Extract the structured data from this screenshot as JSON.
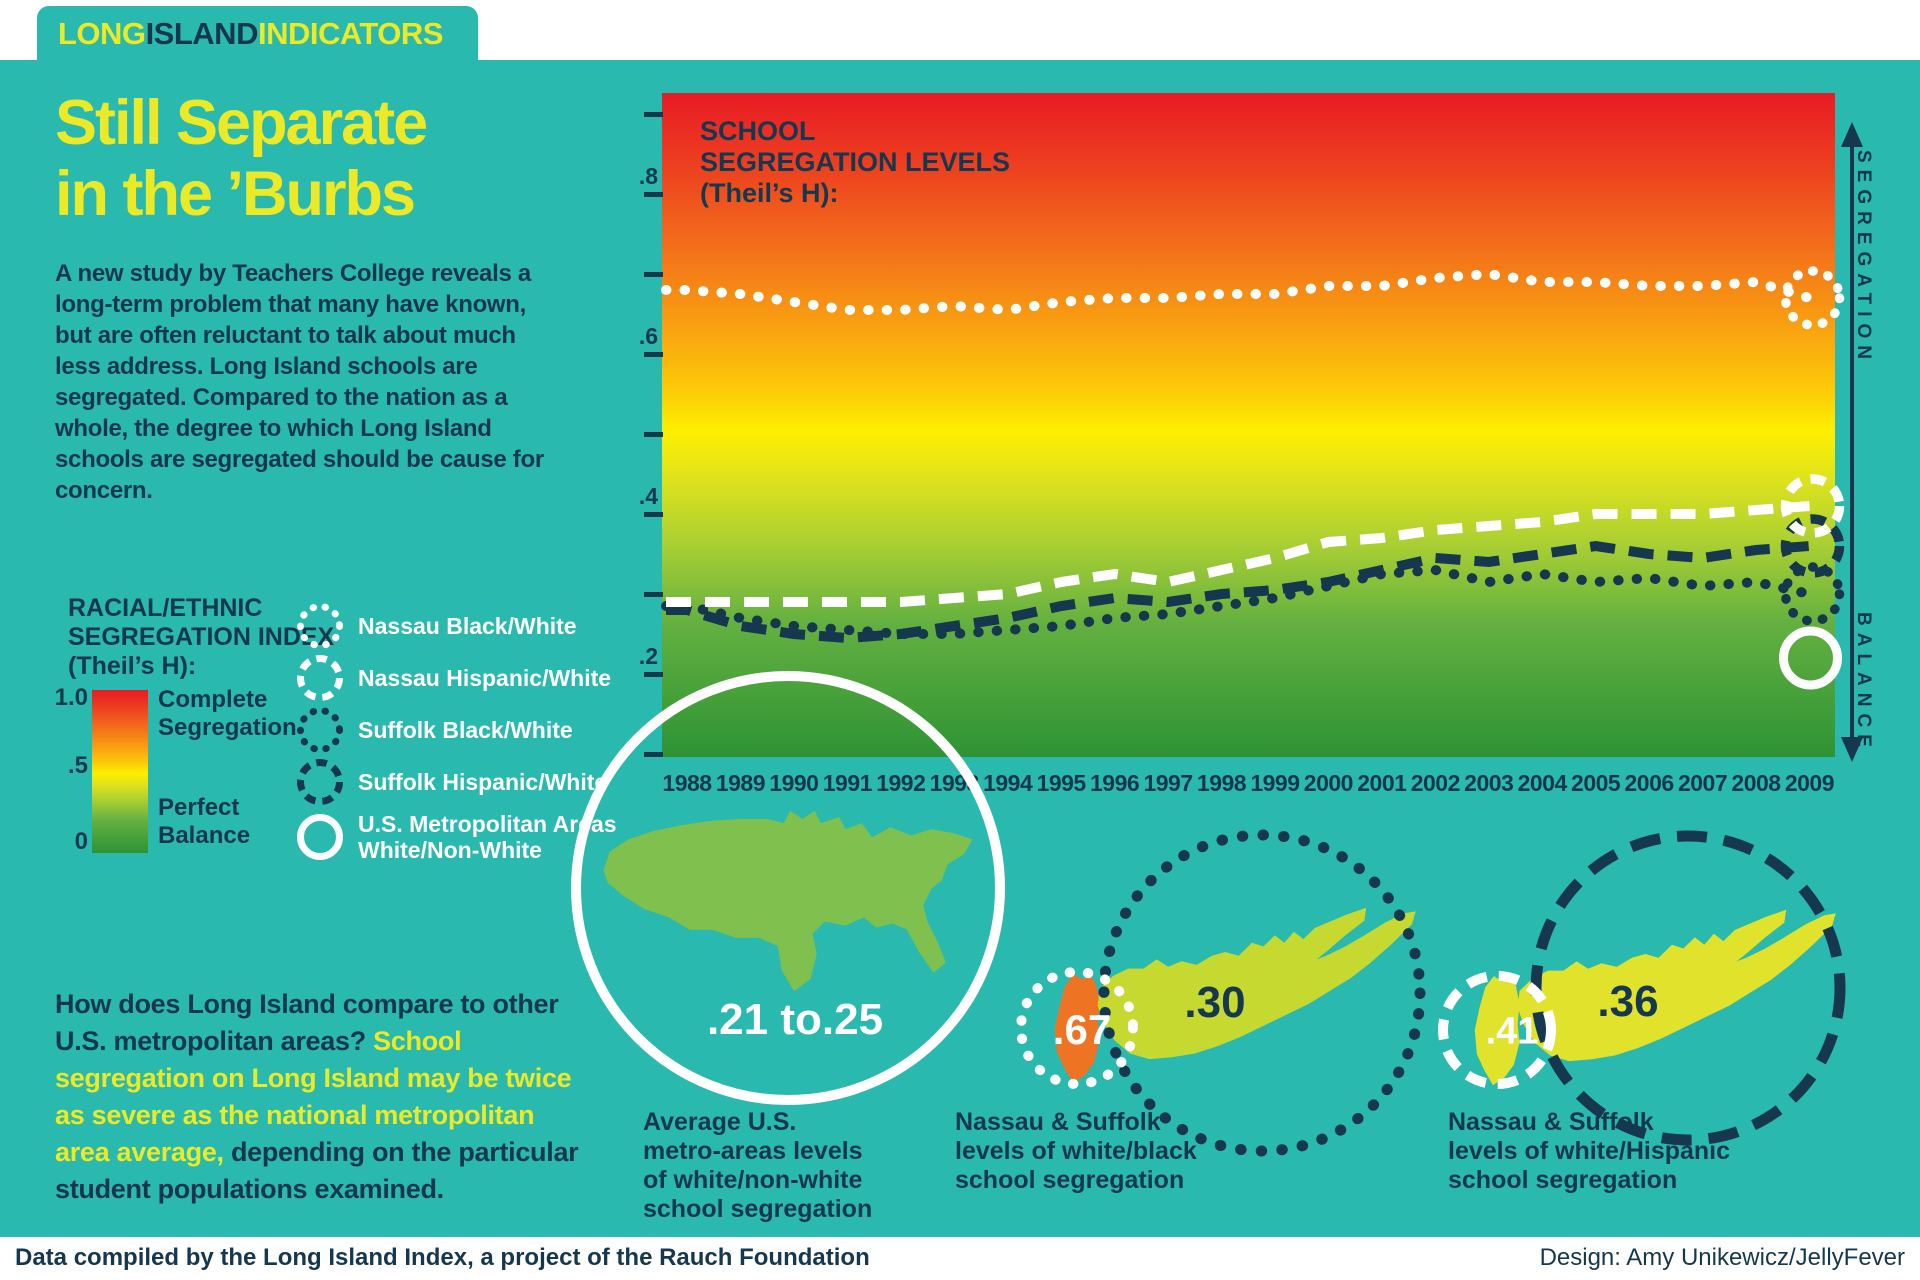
{
  "colors": {
    "teal": "#2ab9ae",
    "navy": "#16384f",
    "yellow": "#ece927",
    "white": "#ffffff",
    "orange": "#ee7424",
    "usgreen": "#7fc04f",
    "ligreen": "#c6d931",
    "liyellow": "#e0e22c"
  },
  "header": {
    "brand_long": "LONG",
    "brand_island": "ISLAND",
    "brand_indicators": "INDICATORS"
  },
  "title_lines": [
    "Still Separate",
    "in the ’Burbs"
  ],
  "intro": "A new study by Teachers College reveals a long-term problem that many have known, but are often reluctant to talk about much less address. Long Island schools are segregated. Compared to the nation as a whole, the degree to which Long Island schools are segregated should be cause for concern.",
  "index_legend": {
    "title_lines": [
      "RACIAL/ETHNIC",
      "SEGREGATION INDEX",
      "(Theil’s H):"
    ],
    "scale_top_value": "1.0",
    "scale_mid_value": ".5",
    "scale_bottom_value": "0",
    "scale_top_label_lines": [
      "Complete",
      "Segregation"
    ],
    "scale_bottom_label_lines": [
      "Perfect",
      "Balance"
    ]
  },
  "series_legend": [
    {
      "label": "Nassau Black/White",
      "style": "dotted",
      "color": "white"
    },
    {
      "label": "Nassau Hispanic/White",
      "style": "dashed",
      "color": "white"
    },
    {
      "label": "Suffolk Black/White",
      "style": "dotted",
      "color": "navy"
    },
    {
      "label": "Suffolk Hispanic/White",
      "style": "dashed",
      "color": "navy"
    },
    {
      "label_lines": [
        "U.S. Metropolitan Areas",
        "White/Non-White"
      ],
      "style": "solid",
      "color": "white"
    }
  ],
  "chart_data": {
    "type": "line",
    "title_lines": [
      "SCHOOL",
      "SEGREGATION LEVELS",
      "(Theil’s H):"
    ],
    "background": "vertical gradient red (segregation) to green (balance)",
    "x": [
      1988,
      1989,
      1990,
      1991,
      1992,
      1993,
      1994,
      1995,
      1996,
      1997,
      1998,
      1999,
      2000,
      2001,
      2002,
      2003,
      2004,
      2005,
      2006,
      2007,
      2008,
      2009
    ],
    "ylim": [
      0.1,
      0.93
    ],
    "y_ticks": [
      0.9,
      0.8,
      0.7,
      0.6,
      0.5,
      0.4,
      0.3,
      0.2,
      0.1
    ],
    "y_tick_labels": {
      "0.8": ".8",
      "0.6": ".6",
      "0.4": ".4",
      "0.2": ".2"
    },
    "right_axis": {
      "top": "SEGREGATION",
      "bottom": "BALANCE"
    },
    "series": [
      {
        "name": "Nassau Black/White",
        "style": "dotted",
        "color": "white",
        "values": [
          0.68,
          0.675,
          0.665,
          0.655,
          0.655,
          0.66,
          0.655,
          0.665,
          0.67,
          0.67,
          0.675,
          0.675,
          0.685,
          0.685,
          0.695,
          0.7,
          0.69,
          0.69,
          0.685,
          0.685,
          0.69,
          0.67
        ],
        "end_value": 0.67
      },
      {
        "name": "Nassau Hispanic/White",
        "style": "dashed",
        "color": "white",
        "values": [
          0.29,
          0.29,
          0.29,
          0.29,
          0.29,
          0.295,
          0.3,
          0.315,
          0.325,
          0.315,
          0.33,
          0.345,
          0.365,
          0.37,
          0.38,
          0.385,
          0.39,
          0.4,
          0.4,
          0.4,
          0.405,
          0.41
        ],
        "end_value": 0.41
      },
      {
        "name": "Suffolk Hispanic/White",
        "style": "dashed",
        "color": "navy",
        "values": [
          0.28,
          0.26,
          0.25,
          0.245,
          0.25,
          0.26,
          0.27,
          0.285,
          0.295,
          0.29,
          0.3,
          0.305,
          0.315,
          0.33,
          0.345,
          0.34,
          0.35,
          0.36,
          0.35,
          0.345,
          0.355,
          0.36
        ],
        "end_value": 0.36
      },
      {
        "name": "Suffolk Black/White",
        "style": "dotted",
        "color": "navy",
        "values": [
          0.285,
          0.27,
          0.26,
          0.255,
          0.25,
          0.25,
          0.255,
          0.26,
          0.27,
          0.275,
          0.285,
          0.295,
          0.31,
          0.325,
          0.33,
          0.315,
          0.325,
          0.315,
          0.32,
          0.31,
          0.315,
          0.3
        ],
        "end_value": 0.3
      }
    ],
    "markers": [
      {
        "name": "U.S. Metropolitan Areas White/Non-White",
        "style": "solid",
        "color": "white",
        "x": 2009,
        "value": 0.22
      }
    ]
  },
  "maps": [
    {
      "value": ".21 to.25",
      "caption_lines": [
        "Average U.S.",
        "metro-areas levels",
        "of white/non-white",
        "school segregation"
      ]
    },
    {
      "nassau_value": ".67",
      "suffolk_value": ".30",
      "caption_lines": [
        "Nassau & Suffolk",
        "levels of white/black",
        "school segregation"
      ]
    },
    {
      "nassau_value": ".41",
      "suffolk_value": ".36",
      "caption_lines": [
        "Nassau & Suffolk",
        "levels of white/Hispanic",
        "school segregation"
      ]
    }
  ],
  "compare_text": {
    "part1": "How does Long Island compare to other U.S. metropolitan areas? ",
    "part2": "School segregation on Long Island may be twice as severe as the national metropolitan area average,",
    "part3": " depending on the particular student populations examined."
  },
  "footer": {
    "left": "Data compiled by the Long Island Index, a project of the Rauch Foundation",
    "right": "Design: Amy Unikewicz/JellyFever"
  }
}
